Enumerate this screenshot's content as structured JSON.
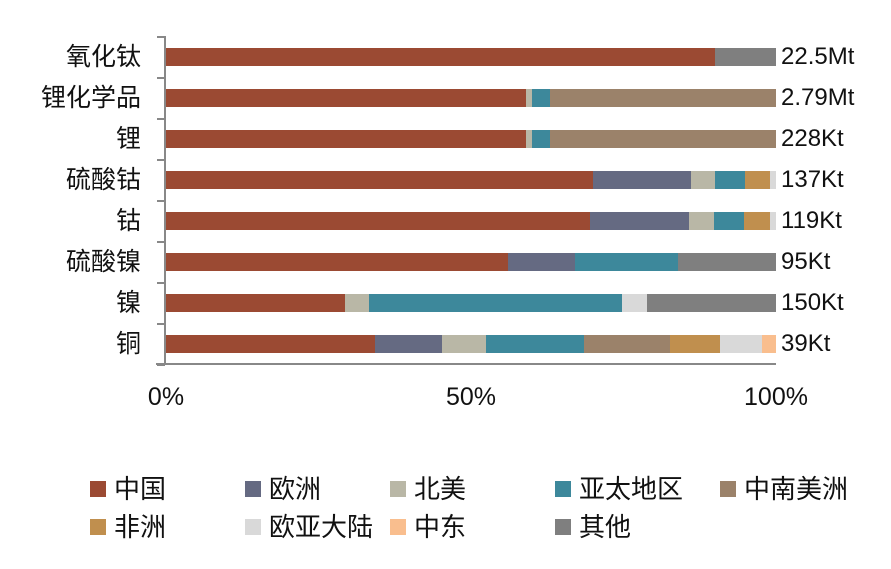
{
  "chart_data": {
    "type": "bar",
    "orientation": "horizontal",
    "stacked": "percent",
    "title": "",
    "xlabel": "",
    "ylabel": "",
    "xlim": [
      0,
      100
    ],
    "x_ticks": [
      "0%",
      "50%",
      "100%"
    ],
    "grid": false,
    "legend_position": "bottom",
    "categories": [
      "氧化钛",
      "锂化学品",
      "锂",
      "硫酸钴",
      "钴",
      "硫酸镍",
      "镍",
      "铜"
    ],
    "totals": [
      "22.5Mt",
      "2.79Mt",
      "228Kt",
      "137Kt",
      "119Kt",
      "95Kt",
      "150Kt",
      "39Kt"
    ],
    "series": [
      {
        "name": "中国",
        "color": "#9B4A33",
        "values": [
          90,
          59,
          59,
          70,
          69.5,
          56,
          29.3,
          34.2
        ]
      },
      {
        "name": "欧洲",
        "color": "#656A82",
        "values": [
          0,
          0,
          0,
          16,
          16.2,
          11,
          0,
          11.1
        ]
      },
      {
        "name": "北美",
        "color": "#B9B7A6",
        "values": [
          0,
          1,
          1,
          4,
          4.1,
          0,
          4,
          7.2
        ]
      },
      {
        "name": "亚太地区",
        "color": "#3D889B",
        "values": [
          0,
          3,
          3,
          5,
          5,
          17,
          41.4,
          16.1
        ]
      },
      {
        "name": "中南美洲",
        "color": "#9B826A",
        "values": [
          0,
          37,
          37,
          0,
          0,
          0,
          0,
          14.1
        ]
      },
      {
        "name": "非洲",
        "color": "#C08F4E",
        "values": [
          0,
          0,
          0,
          4,
          4.2,
          0,
          0,
          8.2
        ]
      },
      {
        "name": "欧亚大陆",
        "color": "#D9D9D9",
        "values": [
          0,
          0,
          0,
          1,
          1,
          0,
          4.1,
          6.8
        ]
      },
      {
        "name": "中东",
        "color": "#F9BE8E",
        "values": [
          0,
          0,
          0,
          0,
          0,
          0,
          0,
          2.3
        ]
      },
      {
        "name": "其他",
        "color": "#7F7F7F",
        "values": [
          10,
          0,
          0,
          0,
          0,
          16,
          21.2,
          0
        ]
      }
    ]
  }
}
